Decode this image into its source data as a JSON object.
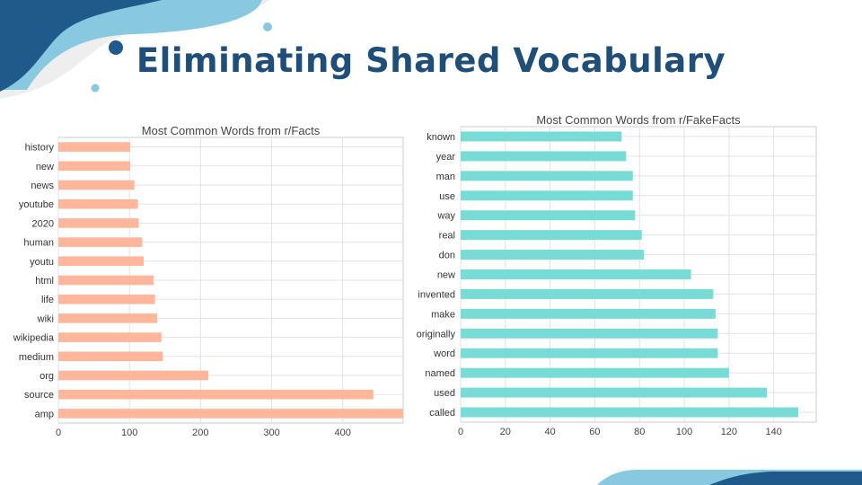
{
  "slide": {
    "title": "Eliminating Shared Vocabulary"
  },
  "theme": {
    "title_color": "#1f4e79",
    "decor_dark": "#1f5a8a",
    "decor_light": "#89c9e0",
    "decor_gray": "#eeeeee"
  },
  "chart_data": [
    {
      "type": "bar",
      "orientation": "horizontal",
      "title": "Most Common Words from r/Facts",
      "color": "#ffb69a",
      "categories": [
        "history",
        "new",
        "news",
        "youtube",
        "2020",
        "human",
        "youtu",
        "html",
        "life",
        "wiki",
        "wikipedia",
        "medium",
        "org",
        "source",
        "amp"
      ],
      "values": [
        101,
        101,
        107,
        112,
        113,
        118,
        120,
        134,
        136,
        139,
        145,
        147,
        211,
        443,
        490
      ],
      "xlim": [
        0,
        485
      ],
      "xticks": [
        0,
        100,
        200,
        300,
        400
      ],
      "grid": true
    },
    {
      "type": "bar",
      "orientation": "horizontal",
      "title": "Most Common Words from r/FakeFacts",
      "color": "#78dcd6",
      "categories": [
        "known",
        "year",
        "man",
        "use",
        "way",
        "real",
        "don",
        "new",
        "invented",
        "make",
        "originally",
        "word",
        "named",
        "used",
        "called"
      ],
      "values": [
        72,
        74,
        77,
        77,
        78,
        81,
        82,
        103,
        113,
        114,
        115,
        115,
        120,
        137,
        151
      ],
      "xlim": [
        0,
        159
      ],
      "xticks": [
        0,
        20,
        40,
        60,
        80,
        100,
        120,
        140
      ],
      "grid": true
    }
  ]
}
